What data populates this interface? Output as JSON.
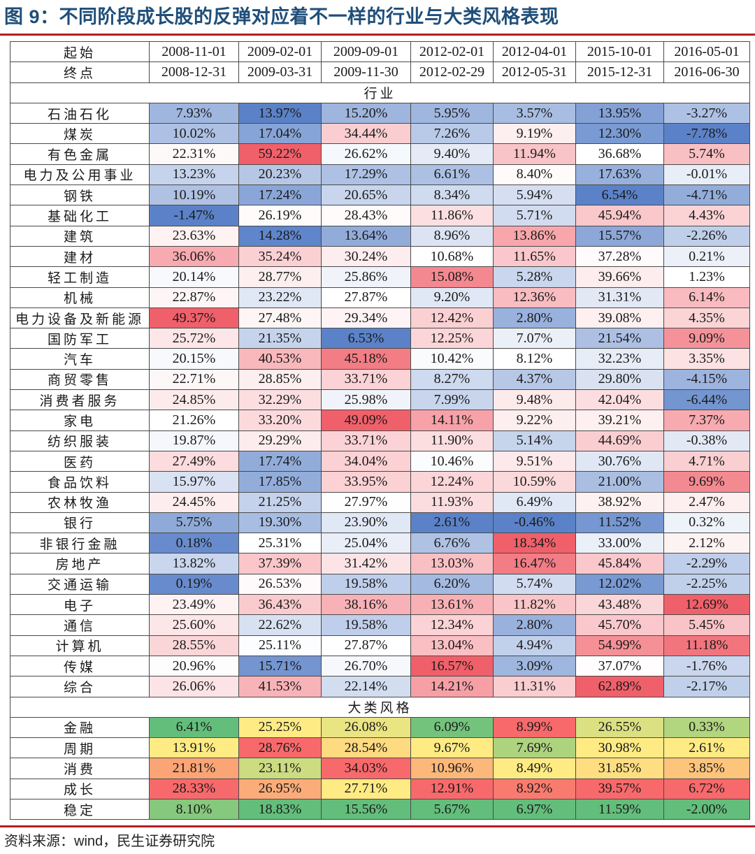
{
  "title": "图 9：不同阶段成长股的反弹对应着不一样的行业与大类风格表现",
  "source": "资料来源：wind，民生证券研究院",
  "header": {
    "start_label": "起始",
    "end_label": "终点",
    "starts": [
      "2008-11-01",
      "2009-02-01",
      "2009-09-01",
      "2012-02-01",
      "2012-04-01",
      "2015-10-01",
      "2016-05-01"
    ],
    "ends": [
      "2008-12-31",
      "2009-03-31",
      "2009-11-30",
      "2012-02-29",
      "2012-05-31",
      "2015-12-31",
      "2016-06-30"
    ]
  },
  "industry_section_label": "行业",
  "industries": [
    {
      "name": "石油石化",
      "values": [
        "7.93%",
        "13.97%",
        "15.20%",
        "5.95%",
        "3.57%",
        "13.95%",
        "-3.27%"
      ]
    },
    {
      "name": "煤炭",
      "values": [
        "10.02%",
        "17.04%",
        "34.44%",
        "7.26%",
        "9.19%",
        "12.30%",
        "-7.78%"
      ]
    },
    {
      "name": "有色金属",
      "values": [
        "22.31%",
        "59.22%",
        "26.62%",
        "9.40%",
        "11.94%",
        "36.68%",
        "5.74%"
      ]
    },
    {
      "name": "电力及公用事业",
      "values": [
        "13.23%",
        "20.23%",
        "17.29%",
        "6.61%",
        "8.40%",
        "17.63%",
        "-0.01%"
      ]
    },
    {
      "name": "钢铁",
      "values": [
        "10.19%",
        "17.24%",
        "20.65%",
        "8.34%",
        "5.94%",
        "6.54%",
        "-4.71%"
      ]
    },
    {
      "name": "基础化工",
      "values": [
        "-1.47%",
        "26.19%",
        "28.43%",
        "11.86%",
        "5.71%",
        "45.94%",
        "4.43%"
      ]
    },
    {
      "name": "建筑",
      "values": [
        "23.63%",
        "14.28%",
        "13.64%",
        "8.96%",
        "13.86%",
        "15.57%",
        "-2.26%"
      ]
    },
    {
      "name": "建材",
      "values": [
        "36.06%",
        "35.24%",
        "30.24%",
        "10.68%",
        "11.65%",
        "37.28%",
        "0.21%"
      ]
    },
    {
      "name": "轻工制造",
      "values": [
        "20.14%",
        "28.77%",
        "25.86%",
        "15.08%",
        "5.28%",
        "39.66%",
        "1.23%"
      ]
    },
    {
      "name": "机械",
      "values": [
        "22.87%",
        "23.22%",
        "27.87%",
        "9.20%",
        "12.36%",
        "31.31%",
        "6.14%"
      ]
    },
    {
      "name": "电力设备及新能源",
      "values": [
        "49.37%",
        "27.48%",
        "29.34%",
        "12.42%",
        "2.80%",
        "39.08%",
        "4.35%"
      ]
    },
    {
      "name": "国防军工",
      "values": [
        "25.72%",
        "21.35%",
        "6.53%",
        "12.25%",
        "7.07%",
        "21.54%",
        "9.09%"
      ]
    },
    {
      "name": "汽车",
      "values": [
        "20.15%",
        "40.53%",
        "45.18%",
        "10.42%",
        "8.12%",
        "32.23%",
        "3.35%"
      ]
    },
    {
      "name": "商贸零售",
      "values": [
        "22.71%",
        "28.85%",
        "33.71%",
        "8.27%",
        "4.37%",
        "29.80%",
        "-4.15%"
      ]
    },
    {
      "name": "消费者服务",
      "values": [
        "24.85%",
        "32.29%",
        "25.98%",
        "7.99%",
        "9.48%",
        "42.04%",
        "-6.44%"
      ]
    },
    {
      "name": "家电",
      "values": [
        "21.26%",
        "33.20%",
        "49.09%",
        "14.11%",
        "9.22%",
        "39.21%",
        "7.37%"
      ]
    },
    {
      "name": "纺织服装",
      "values": [
        "19.87%",
        "29.29%",
        "33.71%",
        "11.90%",
        "5.14%",
        "44.69%",
        "-0.38%"
      ]
    },
    {
      "name": "医药",
      "values": [
        "27.49%",
        "17.74%",
        "34.04%",
        "10.46%",
        "9.51%",
        "30.76%",
        "4.71%"
      ]
    },
    {
      "name": "食品饮料",
      "values": [
        "15.97%",
        "17.85%",
        "33.95%",
        "12.24%",
        "10.59%",
        "21.00%",
        "9.69%"
      ]
    },
    {
      "name": "农林牧渔",
      "values": [
        "24.45%",
        "21.25%",
        "27.97%",
        "11.93%",
        "6.49%",
        "38.92%",
        "2.47%"
      ]
    },
    {
      "name": "银行",
      "values": [
        "5.75%",
        "19.30%",
        "23.90%",
        "2.61%",
        "-0.46%",
        "11.52%",
        "0.32%"
      ]
    },
    {
      "name": "非银行金融",
      "values": [
        "0.18%",
        "25.31%",
        "25.04%",
        "6.76%",
        "18.34%",
        "33.00%",
        "2.12%"
      ]
    },
    {
      "name": "房地产",
      "values": [
        "13.82%",
        "37.39%",
        "31.42%",
        "13.03%",
        "16.47%",
        "45.84%",
        "-2.29%"
      ]
    },
    {
      "name": "交通运输",
      "values": [
        "0.19%",
        "26.53%",
        "19.58%",
        "6.20%",
        "5.74%",
        "12.02%",
        "-2.25%"
      ]
    },
    {
      "name": "电子",
      "values": [
        "23.49%",
        "36.43%",
        "38.16%",
        "13.61%",
        "11.82%",
        "43.48%",
        "12.69%"
      ]
    },
    {
      "name": "通信",
      "values": [
        "25.60%",
        "22.62%",
        "19.58%",
        "12.34%",
        "2.80%",
        "45.70%",
        "5.45%"
      ]
    },
    {
      "name": "计算机",
      "values": [
        "28.55%",
        "25.11%",
        "27.87%",
        "13.04%",
        "4.94%",
        "54.99%",
        "11.18%"
      ]
    },
    {
      "name": "传媒",
      "values": [
        "20.96%",
        "15.71%",
        "26.70%",
        "16.57%",
        "3.09%",
        "37.07%",
        "-1.76%"
      ]
    },
    {
      "name": "综合",
      "values": [
        "26.06%",
        "41.53%",
        "22.14%",
        "14.21%",
        "11.31%",
        "62.89%",
        "-2.17%"
      ]
    }
  ],
  "style_section_label": "大类风格",
  "styles": [
    {
      "name": "金融",
      "values": [
        "6.41%",
        "25.25%",
        "26.08%",
        "6.09%",
        "8.99%",
        "26.55%",
        "0.33%"
      ]
    },
    {
      "name": "周期",
      "values": [
        "13.91%",
        "28.76%",
        "28.54%",
        "9.67%",
        "7.69%",
        "30.98%",
        "2.61%"
      ]
    },
    {
      "name": "消费",
      "values": [
        "21.81%",
        "23.11%",
        "34.03%",
        "10.96%",
        "8.49%",
        "31.85%",
        "3.85%"
      ]
    },
    {
      "name": "成长",
      "values": [
        "28.33%",
        "26.95%",
        "27.71%",
        "12.91%",
        "8.92%",
        "39.57%",
        "6.72%"
      ]
    },
    {
      "name": "稳定",
      "values": [
        "8.10%",
        "18.83%",
        "15.56%",
        "5.67%",
        "6.97%",
        "11.59%",
        "-2.00%"
      ]
    }
  ],
  "colors": {
    "rule": "#b31e23",
    "title": "#1f4e79",
    "heat_low": "#5b82c8",
    "heat_mid": "#ffffff",
    "heat_high": "#f0606a",
    "style_low": "#63be7b",
    "style_mid": "#ffeb84",
    "style_high": "#f8696b"
  }
}
